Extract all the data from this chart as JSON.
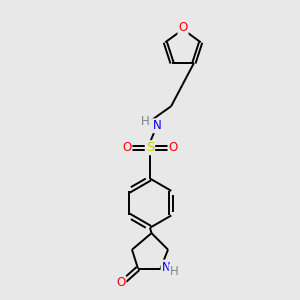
{
  "background_color": "#e8e8e8",
  "bond_color": "#000000",
  "atom_colors": {
    "O": "#ff0000",
    "N": "#0000ff",
    "S": "#cccc00",
    "H": "#6e8b8b",
    "C": "#000000"
  },
  "figsize": [
    3.0,
    3.0
  ],
  "dpi": 100,
  "lw": 1.4,
  "fs": 8.5
}
